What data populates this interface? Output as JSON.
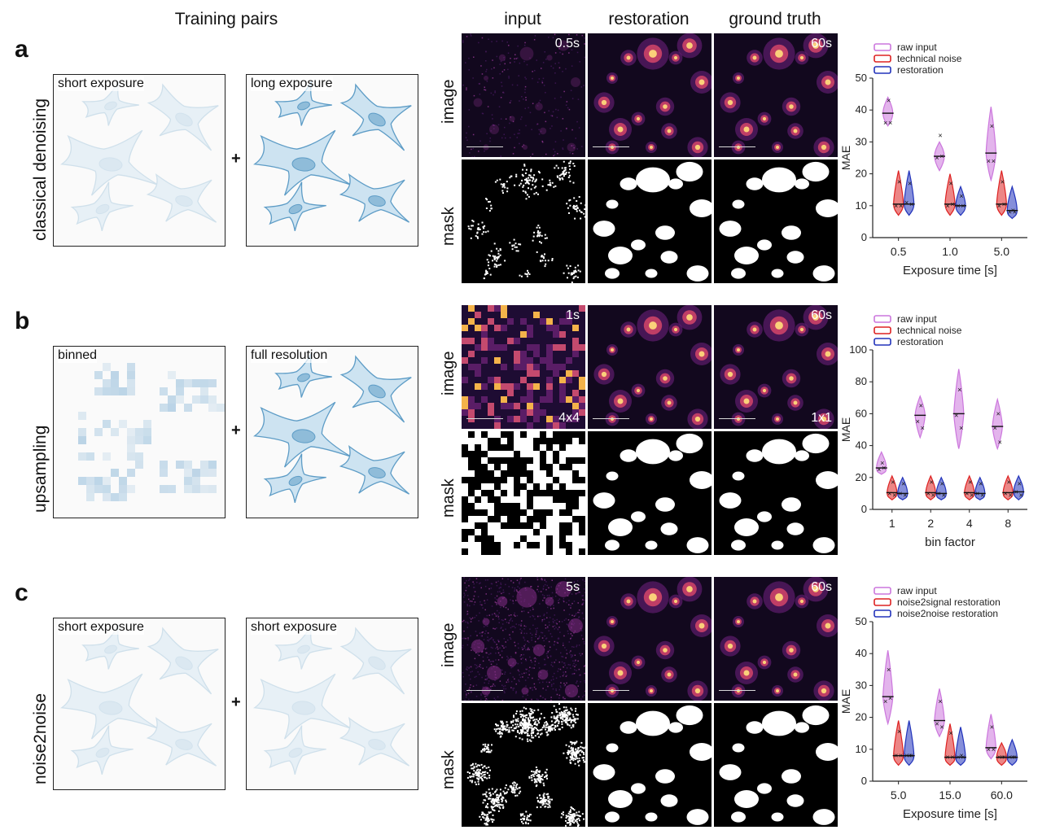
{
  "headers": {
    "training_pairs": "Training pairs",
    "input": "input",
    "restoration": "restoration",
    "ground_truth": "ground truth",
    "image": "image",
    "mask": "mask"
  },
  "panels": [
    {
      "letter": "a",
      "row_title": "classical denoising",
      "left_label": "short exposure",
      "right_label": "long exposure",
      "left_style": "faint",
      "right_style": "clear",
      "plus": "+",
      "input_time": "0.5s",
      "gt_time": "60s",
      "input_corner": "",
      "gt_corner": "",
      "input_style": "dim",
      "mask_style": "sparse",
      "chart": {
        "type": "violin",
        "ylabel": "MAE",
        "xlabel": "Exposure time [s]",
        "ylim": [
          0,
          50
        ],
        "yticks": [
          0,
          10,
          20,
          30,
          40,
          50
        ],
        "categories": [
          "0.5",
          "1.0",
          "5.0"
        ],
        "legend": [
          "raw input",
          "technical noise",
          "restoration"
        ],
        "colors": [
          "#cc77dd",
          "#dd2222",
          "#2233bb"
        ],
        "series": [
          {
            "name": "raw input",
            "medians": [
              39,
              25.5,
              26.5
            ],
            "points": [
              [
                43,
                36,
                36
              ],
              [
                32,
                25,
                25.5
              ],
              [
                35,
                24,
                24
              ]
            ],
            "spread": [
              [
                35,
                44
              ],
              [
                21,
                30
              ],
              [
                18,
                41
              ]
            ]
          },
          {
            "name": "technical noise",
            "medians": [
              10.5,
              10.5,
              10.5
            ],
            "points": [
              [
                17.5,
                10,
                10
              ],
              [
                17,
                10,
                10.5
              ],
              [
                17.5,
                10,
                10.5
              ]
            ],
            "spread": [
              [
                7,
                21
              ],
              [
                7,
                20
              ],
              [
                7,
                21
              ]
            ]
          },
          {
            "name": "restoration",
            "medians": [
              10.5,
              10,
              8.5
            ],
            "points": [
              [
                17,
                11,
                10.5
              ],
              [
                13,
                10,
                10
              ],
              [
                8.5,
                8,
                8
              ]
            ],
            "spread": [
              [
                7,
                21
              ],
              [
                7,
                16
              ],
              [
                6,
                16
              ]
            ]
          }
        ]
      }
    },
    {
      "letter": "b",
      "row_title": "upsampling",
      "left_label": "binned",
      "right_label": "full resolution",
      "left_style": "pixel",
      "right_style": "clear",
      "plus": "+",
      "input_time": "1s",
      "gt_time": "60s",
      "input_corner": "4x4",
      "gt_corner": "1x1",
      "input_style": "pixel",
      "mask_style": "blocky",
      "chart": {
        "type": "violin",
        "ylabel": "MAE",
        "xlabel": "bin factor",
        "ylim": [
          0,
          100
        ],
        "yticks": [
          0,
          20,
          40,
          60,
          80,
          100
        ],
        "categories": [
          "1",
          "2",
          "4",
          "8"
        ],
        "legend": [
          "raw input",
          "technical noise",
          "restoration"
        ],
        "colors": [
          "#cc77dd",
          "#dd2222",
          "#2233bb"
        ],
        "series": [
          {
            "name": "raw input",
            "medians": [
              26,
              59,
              60,
              52
            ],
            "points": [
              [
                29,
                25,
                26
              ],
              [
                65,
                55,
                51
              ],
              [
                75,
                59,
                51
              ],
              [
                60,
                51,
                42
              ]
            ],
            "spread": [
              [
                22,
                36
              ],
              [
                45,
                71
              ],
              [
                38,
                88
              ],
              [
                38,
                69
              ]
            ]
          },
          {
            "name": "technical noise",
            "medians": [
              10.5,
              10.5,
              10.5,
              10.5
            ],
            "points": [
              [
                17,
                10,
                9
              ],
              [
                17,
                10,
                9
              ],
              [
                17,
                10,
                9
              ],
              [
                17,
                10,
                9
              ]
            ],
            "spread": [
              [
                6,
                21
              ],
              [
                6,
                21
              ],
              [
                6,
                21
              ],
              [
                6,
                21
              ]
            ]
          },
          {
            "name": "restoration",
            "medians": [
              10,
              10,
              10,
              11
            ],
            "points": [
              [
                16,
                10,
                9
              ],
              [
                16,
                10,
                9
              ],
              [
                16,
                10,
                9
              ],
              [
                16,
                11,
                9
              ]
            ],
            "spread": [
              [
                6,
                20
              ],
              [
                6,
                20
              ],
              [
                6,
                20
              ],
              [
                6,
                21
              ]
            ]
          }
        ]
      }
    },
    {
      "letter": "c",
      "row_title": "noise2noise",
      "left_label": "short exposure",
      "right_label": "short exposure",
      "left_style": "faint",
      "right_style": "faint",
      "plus": "+",
      "input_time": "5s",
      "gt_time": "60s",
      "input_corner": "",
      "gt_corner": "",
      "input_style": "noisy",
      "mask_style": "fuzzy",
      "chart": {
        "type": "violin",
        "ylabel": "MAE",
        "xlabel": "Exposure time [s]",
        "ylim": [
          0,
          50
        ],
        "yticks": [
          0,
          10,
          20,
          30,
          40,
          50
        ],
        "categories": [
          "5.0",
          "15.0",
          "60.0"
        ],
        "legend": [
          "raw input",
          "noise2signal restoration",
          "noise2noise restoration"
        ],
        "colors": [
          "#cc77dd",
          "#dd2222",
          "#2233bb"
        ],
        "series": [
          {
            "name": "raw input",
            "medians": [
              26.5,
              19,
              10.5
            ],
            "points": [
              [
                35,
                25,
                26
              ],
              [
                25,
                18,
                17
              ],
              [
                17,
                10,
                10
              ]
            ],
            "spread": [
              [
                18,
                41
              ],
              [
                14,
                29
              ],
              [
                7,
                21
              ]
            ]
          },
          {
            "name": "noise2signal restoration",
            "medians": [
              8,
              7.5,
              7.5
            ],
            "points": [
              [
                15.5,
                8,
                8
              ],
              [
                15,
                7.5,
                7.5
              ],
              [
                7.5,
                7.5,
                7.5
              ]
            ],
            "spread": [
              [
                5,
                19
              ],
              [
                5,
                18
              ],
              [
                5,
                12
              ]
            ]
          },
          {
            "name": "noise2noise restoration",
            "medians": [
              8,
              7.5,
              7.5
            ],
            "points": [
              [
                8,
                8,
                8
              ],
              [
                8,
                7.5,
                7.5
              ],
              [
                7.5,
                7.5,
                7.5
              ]
            ],
            "spread": [
              [
                5,
                19
              ],
              [
                5,
                17
              ],
              [
                5,
                13
              ]
            ]
          }
        ]
      }
    }
  ],
  "chart_data": [
    {
      "type": "violin",
      "ylabel": "MAE",
      "xlabel": "Exposure time [s]",
      "ylim": [
        0,
        50
      ],
      "categories": [
        "0.5",
        "1.0",
        "5.0"
      ],
      "series": [
        {
          "name": "raw input",
          "values": [
            39,
            25.5,
            26.5
          ]
        },
        {
          "name": "technical noise",
          "values": [
            10.5,
            10.5,
            10.5
          ]
        },
        {
          "name": "restoration",
          "values": [
            10.5,
            10,
            8.5
          ]
        }
      ]
    },
    {
      "type": "violin",
      "ylabel": "MAE",
      "xlabel": "bin factor",
      "ylim": [
        0,
        100
      ],
      "categories": [
        "1",
        "2",
        "4",
        "8"
      ],
      "series": [
        {
          "name": "raw input",
          "values": [
            26,
            59,
            60,
            52
          ]
        },
        {
          "name": "technical noise",
          "values": [
            10.5,
            10.5,
            10.5,
            10.5
          ]
        },
        {
          "name": "restoration",
          "values": [
            10,
            10,
            10,
            11
          ]
        }
      ]
    },
    {
      "type": "violin",
      "ylabel": "MAE",
      "xlabel": "Exposure time [s]",
      "ylim": [
        0,
        50
      ],
      "categories": [
        "5.0",
        "15.0",
        "60.0"
      ],
      "series": [
        {
          "name": "raw input",
          "values": [
            26.5,
            19,
            10.5
          ]
        },
        {
          "name": "noise2signal restoration",
          "values": [
            8,
            7.5,
            7.5
          ]
        },
        {
          "name": "noise2noise restoration",
          "values": [
            8,
            7.5,
            7.5
          ]
        }
      ]
    }
  ]
}
